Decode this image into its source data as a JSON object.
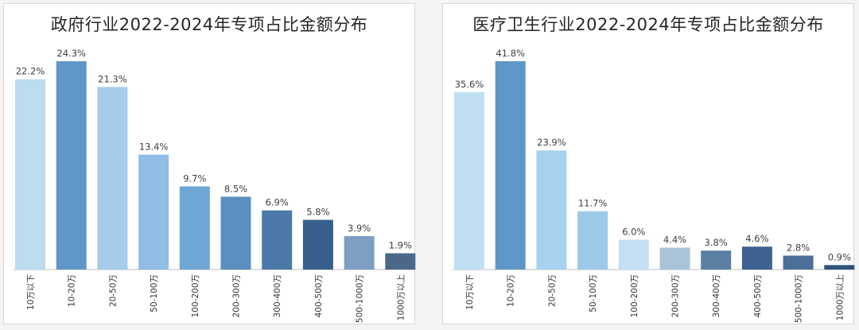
{
  "chart_data": [
    {
      "type": "bar",
      "title": "政府行业2022-2024年专项占比金额分布",
      "categories": [
        "10万以下",
        "10-20万",
        "20-50万",
        "50-100万",
        "100-200万",
        "200-300万",
        "300-400万",
        "400-500万",
        "500-1000万",
        "1000万以上"
      ],
      "values": [
        22.2,
        24.3,
        21.3,
        13.4,
        9.7,
        8.5,
        6.9,
        5.8,
        3.9,
        1.9
      ],
      "labels": [
        "22.2%",
        "24.3%",
        "21.3%",
        "13.4%",
        "9.7%",
        "8.5%",
        "6.9%",
        "5.8%",
        "3.9%",
        "1.9%"
      ],
      "colors": [
        "#bcdcf0",
        "#5e97c7",
        "#a6cce9",
        "#8fbde3",
        "#6ea6d5",
        "#5a8fc0",
        "#4c79aa",
        "#365f8c",
        "#7e9fc2",
        "#4b6888"
      ],
      "ylim": [
        0,
        24.3
      ],
      "grid": false,
      "legend": "none"
    },
    {
      "type": "bar",
      "title": "医疗卫生行业2022-2024年专项占比金额分布",
      "categories": [
        "10万以下",
        "10-20万",
        "20-50万",
        "50-100万",
        "100-200万",
        "200-300万",
        "300-400万",
        "400-500万",
        "500-1000万",
        "1000万以上"
      ],
      "values": [
        35.6,
        41.8,
        23.9,
        11.7,
        6.0,
        4.4,
        3.8,
        4.6,
        2.8,
        0.9
      ],
      "labels": [
        "35.6%",
        "41.8%",
        "23.9%",
        "11.7%",
        "6.0%",
        "4.4%",
        "3.8%",
        "4.6%",
        "2.8%",
        "0.9%"
      ],
      "colors": [
        "#bfe0f3",
        "#5e97c7",
        "#a6d2ef",
        "#9cc9ea",
        "#c4dff3",
        "#a9c2d8",
        "#5c7fa4",
        "#3f6390",
        "#4c6f98",
        "#2f527c"
      ],
      "ylim": [
        0,
        41.8
      ],
      "grid": false,
      "legend": "none"
    }
  ]
}
